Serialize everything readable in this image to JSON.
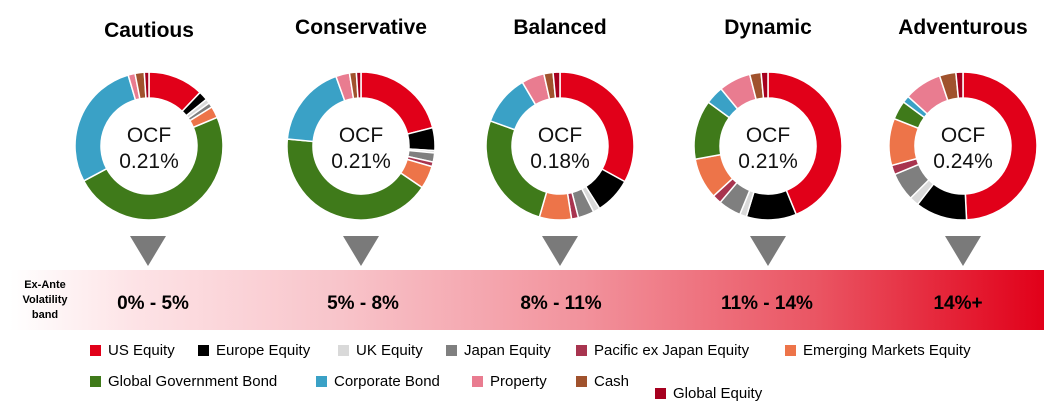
{
  "legend": [
    {
      "name": "US Equity",
      "color": "#E10019"
    },
    {
      "name": "Europe Equity",
      "color": "#000000"
    },
    {
      "name": "UK Equity",
      "color": "#D9D9D9"
    },
    {
      "name": "Japan Equity",
      "color": "#7F7F7F"
    },
    {
      "name": "Pacific ex Japan Equity",
      "color": "#A8344F"
    },
    {
      "name": "Emerging Markets Equity",
      "color": "#ED7449"
    },
    {
      "name": "Global Government Bond",
      "color": "#3F7A1A"
    },
    {
      "name": "Corporate Bond",
      "color": "#3AA1C6"
    },
    {
      "name": "Property",
      "color": "#E97C90"
    },
    {
      "name": "Cash",
      "color": "#A0522D"
    },
    {
      "name": "Global Equity",
      "color": "#A6001F"
    }
  ],
  "volatility": {
    "label": "Ex-Ante Volatility band",
    "bands": [
      "0% - 5%",
      "5% - 8%",
      "8% - 11%",
      "11% - 14%",
      "14%+"
    ]
  },
  "chart_data": [
    {
      "type": "pie",
      "title": "Cautious",
      "center_line1": "OCF",
      "center_line2": "0.21%",
      "categories": [
        "US Equity",
        "Europe Equity",
        "UK Equity",
        "Japan Equity",
        "Pacific ex Japan Equity",
        "Emerging Markets Equity",
        "Global Government Bond",
        "Corporate Bond",
        "Property",
        "Cash",
        "Global Equity"
      ],
      "values": [
        12,
        2,
        1,
        1,
        0,
        2.5,
        48,
        28,
        1.5,
        2,
        1
      ]
    },
    {
      "type": "pie",
      "title": "Conservative",
      "center_line1": "OCF",
      "center_line2": "0.21%",
      "categories": [
        "US Equity",
        "Europe Equity",
        "UK Equity",
        "Japan Equity",
        "Pacific ex Japan Equity",
        "Emerging Markets Equity",
        "Global Government Bond",
        "Corporate Bond",
        "Property",
        "Cash",
        "Global Equity"
      ],
      "values": [
        21,
        5,
        0.5,
        2,
        1,
        5,
        42,
        18,
        3,
        1.5,
        1
      ]
    },
    {
      "type": "pie",
      "title": "Balanced",
      "center_line1": "OCF",
      "center_line2": "0.18%",
      "categories": [
        "US Equity",
        "Europe Equity",
        "UK Equity",
        "Japan Equity",
        "Pacific ex Japan Equity",
        "Emerging Markets Equity",
        "Global Government Bond",
        "Corporate Bond",
        "Property",
        "Cash",
        "Global Equity"
      ],
      "values": [
        33,
        8,
        1.5,
        3.5,
        1.5,
        7,
        26,
        11,
        5,
        2,
        1.5
      ]
    },
    {
      "type": "pie",
      "title": "Dynamic",
      "center_line1": "OCF",
      "center_line2": "0.21%",
      "categories": [
        "US Equity",
        "Europe Equity",
        "UK Equity",
        "Japan Equity",
        "Pacific ex Japan Equity",
        "Emerging Markets Equity",
        "Global Government Bond",
        "Corporate Bond",
        "Property",
        "Cash",
        "Global Equity"
      ],
      "values": [
        44,
        11,
        1.5,
        5,
        2,
        9,
        13,
        4,
        7,
        2.5,
        1.5
      ]
    },
    {
      "type": "pie",
      "title": "Adventurous",
      "center_line1": "OCF",
      "center_line2": "0.24%",
      "categories": [
        "US Equity",
        "Europe Equity",
        "UK Equity",
        "Japan Equity",
        "Pacific ex Japan Equity",
        "Emerging Markets Equity",
        "Global Government Bond",
        "Corporate Bond",
        "Property",
        "Cash",
        "Global Equity"
      ],
      "values": [
        48,
        11,
        2,
        6,
        2,
        10,
        4,
        1.5,
        8,
        3.5,
        1.5
      ]
    }
  ]
}
